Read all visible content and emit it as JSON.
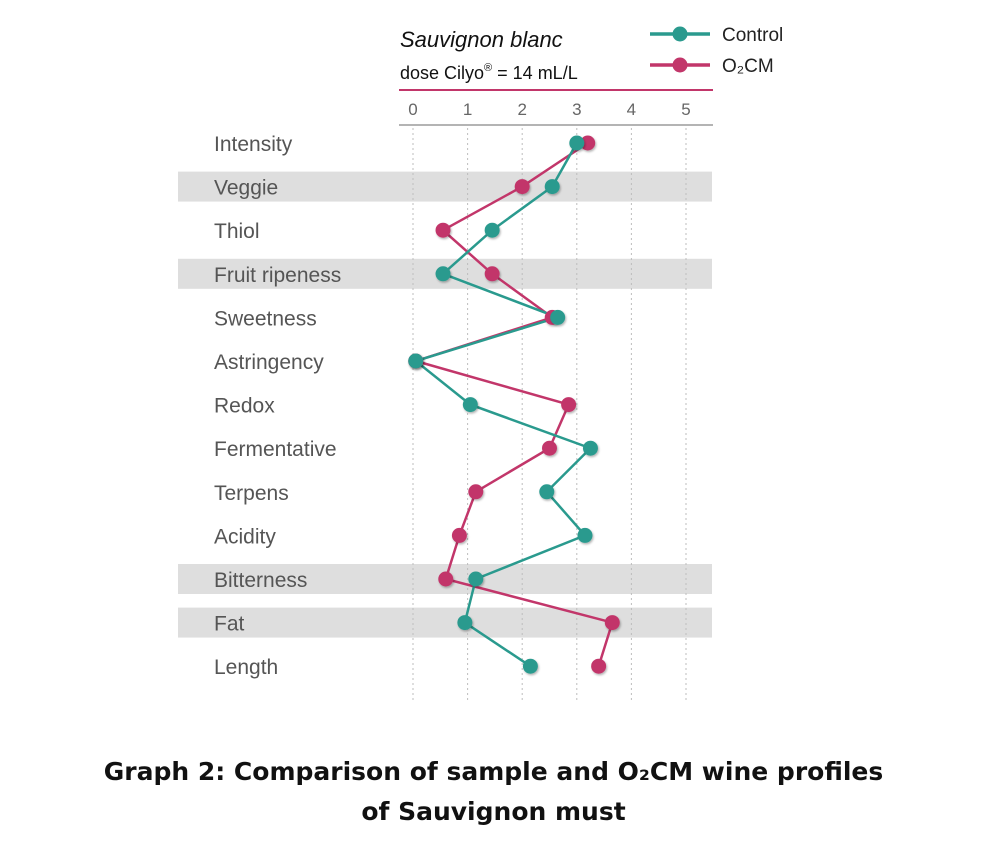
{
  "chart_data": {
    "type": "line",
    "orientation": "horizontal-profile",
    "title": "Sauvignon blanc",
    "subtitle": "dose Cilyo® = 14 mL/L",
    "xlabel": "",
    "ylabel": "",
    "x_ticks": [
      "0",
      "1",
      "2",
      "3",
      "4",
      "5"
    ],
    "xlim": [
      0,
      5.5
    ],
    "grid": "vertical dotted",
    "legend_position": "top-right",
    "categories": [
      "Intensity",
      "Veggie",
      "Thiol",
      "Fruit ripeness",
      "Sweetness",
      "Astringency",
      "Redox",
      "Fermentative",
      "Terpens",
      "Acidity",
      "Bitterness",
      "Fat",
      "Length"
    ],
    "shaded_categories": [
      "Veggie",
      "Fruit ripeness",
      "Bitterness",
      "Fat"
    ],
    "series": [
      {
        "name": "Control",
        "color": "#2a9a8e",
        "values": [
          3.0,
          2.55,
          1.45,
          0.55,
          2.65,
          0.05,
          1.05,
          3.25,
          2.45,
          3.15,
          1.15,
          0.95,
          2.15
        ]
      },
      {
        "name": "O₂CM",
        "color": "#c2366a",
        "values": [
          3.2,
          2.0,
          0.55,
          1.45,
          2.55,
          0.05,
          2.85,
          2.5,
          1.15,
          0.85,
          0.6,
          3.65,
          3.4
        ]
      }
    ]
  },
  "caption": {
    "line1": "Graph 2: Comparison of sample and O₂CM wine profiles",
    "line2": "of Sauvignon must"
  }
}
